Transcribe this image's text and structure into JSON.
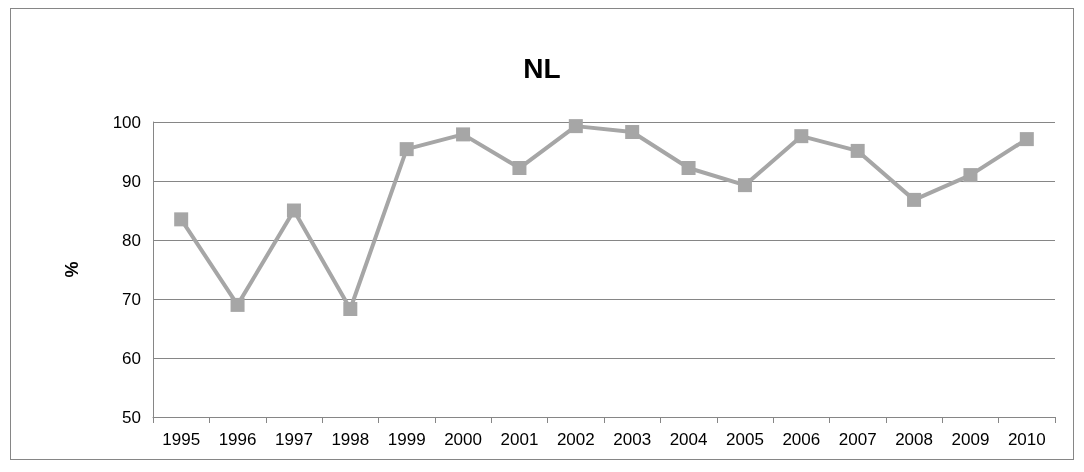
{
  "chart_data": {
    "type": "line",
    "title": "NL",
    "ylabel": "%",
    "categories": [
      "1995",
      "1996",
      "1997",
      "1998",
      "1999",
      "2000",
      "2001",
      "2002",
      "2003",
      "2004",
      "2005",
      "2006",
      "2007",
      "2008",
      "2009",
      "2010"
    ],
    "series": [
      {
        "color": "#a6a6a6",
        "values": [
          83.5,
          69.0,
          85.0,
          68.3,
          95.4,
          97.9,
          92.2,
          99.3,
          98.3,
          92.2,
          89.3,
          97.6,
          95.1,
          86.8,
          91.0,
          97.1
        ]
      }
    ],
    "ylim": [
      50,
      100
    ],
    "yticks": [
      50,
      60,
      70,
      80,
      90,
      100
    ],
    "grid": "y",
    "marker": "square",
    "line_style": "solid"
  }
}
